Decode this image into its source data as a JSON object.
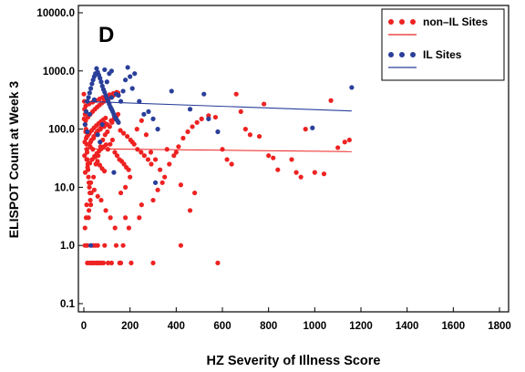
{
  "chart_data": {
    "type": "scatter",
    "panel_label": "D",
    "xlabel": "HZ Severity of Illness Score",
    "ylabel": "ELISPOT Count at Week 3",
    "xlim": [
      -5,
      1800
    ],
    "ylim": [
      0.08,
      10000
    ],
    "yscale": "log",
    "grid": false,
    "legend_position": "top-right",
    "x_ticks": [
      0,
      200,
      400,
      600,
      800,
      1000,
      1200,
      1400,
      1600,
      1800
    ],
    "y_ticks": [
      0.1,
      1,
      10,
      100,
      1000,
      10000
    ],
    "y_tick_labels": [
      "0.1",
      "1.0",
      "10.0",
      "100.0",
      "1000.0",
      "10000.0"
    ],
    "series": [
      {
        "name": "non–IL Sites",
        "color": "#ee2222",
        "fit_line": {
          "x": [
            0,
            1160
          ],
          "y": [
            46,
            41
          ]
        },
        "points": [
          [
            0,
            400
          ],
          [
            2,
            300
          ],
          [
            3,
            220
          ],
          [
            5,
            180
          ],
          [
            6,
            120
          ],
          [
            8,
            90
          ],
          [
            10,
            70
          ],
          [
            12,
            55
          ],
          [
            14,
            40
          ],
          [
            15,
            30
          ],
          [
            17,
            25
          ],
          [
            18,
            20
          ],
          [
            20,
            15
          ],
          [
            22,
            12
          ],
          [
            24,
            10
          ],
          [
            26,
            8
          ],
          [
            28,
            6
          ],
          [
            30,
            5
          ],
          [
            10,
            3
          ],
          [
            20,
            3
          ],
          [
            5,
            1
          ],
          [
            15,
            1
          ],
          [
            40,
            1
          ],
          [
            50,
            1
          ],
          [
            60,
            1
          ],
          [
            90,
            1
          ],
          [
            140,
            1
          ],
          [
            25,
            0.5
          ],
          [
            35,
            0.5
          ],
          [
            45,
            0.5
          ],
          [
            55,
            0.5
          ],
          [
            65,
            0.5
          ],
          [
            75,
            0.5
          ],
          [
            85,
            0.5
          ],
          [
            105,
            0.5
          ],
          [
            155,
            0.5
          ],
          [
            205,
            0.5
          ],
          [
            300,
            0.5
          ],
          [
            580,
            0.5
          ],
          [
            5,
            2
          ],
          [
            12,
            5
          ],
          [
            22,
            4
          ],
          [
            32,
            8
          ],
          [
            42,
            15
          ],
          [
            52,
            25
          ],
          [
            62,
            35
          ],
          [
            72,
            50
          ],
          [
            82,
            65
          ],
          [
            92,
            80
          ],
          [
            102,
            90
          ],
          [
            112,
            110
          ],
          [
            122,
            130
          ],
          [
            132,
            150
          ],
          [
            142,
            170
          ],
          [
            8,
            140
          ],
          [
            18,
            160
          ],
          [
            28,
            180
          ],
          [
            38,
            200
          ],
          [
            48,
            220
          ],
          [
            58,
            240
          ],
          [
            68,
            260
          ],
          [
            78,
            280
          ],
          [
            88,
            300
          ],
          [
            98,
            320
          ],
          [
            108,
            340
          ],
          [
            118,
            360
          ],
          [
            128,
            380
          ],
          [
            138,
            400
          ],
          [
            148,
            420
          ],
          [
            4,
            60
          ],
          [
            14,
            75
          ],
          [
            24,
            85
          ],
          [
            34,
            95
          ],
          [
            44,
            105
          ],
          [
            54,
            115
          ],
          [
            64,
            125
          ],
          [
            74,
            135
          ],
          [
            84,
            145
          ],
          [
            94,
            155
          ],
          [
            104,
            45
          ],
          [
            114,
            55
          ],
          [
            124,
            65
          ],
          [
            134,
            40
          ],
          [
            144,
            35
          ],
          [
            154,
            30
          ],
          [
            164,
            28
          ],
          [
            174,
            25
          ],
          [
            184,
            22
          ],
          [
            194,
            20
          ],
          [
            6,
            18
          ],
          [
            16,
            22
          ],
          [
            26,
            26
          ],
          [
            36,
            30
          ],
          [
            46,
            34
          ],
          [
            56,
            38
          ],
          [
            66,
            42
          ],
          [
            76,
            46
          ],
          [
            86,
            50
          ],
          [
            96,
            54
          ],
          [
            30,
            12
          ],
          [
            45,
            9
          ],
          [
            60,
            7
          ],
          [
            75,
            6
          ],
          [
            95,
            4
          ],
          [
            115,
            3
          ],
          [
            135,
            2
          ],
          [
            160,
            8
          ],
          [
            180,
            10
          ],
          [
            200,
            15
          ],
          [
            210,
            60
          ],
          [
            230,
            100
          ],
          [
            250,
            140
          ],
          [
            270,
            80
          ],
          [
            290,
            40
          ],
          [
            310,
            30
          ],
          [
            330,
            20
          ],
          [
            350,
            15
          ],
          [
            370,
            25
          ],
          [
            390,
            35
          ],
          [
            410,
            50
          ],
          [
            430,
            70
          ],
          [
            450,
            90
          ],
          [
            470,
            110
          ],
          [
            490,
            130
          ],
          [
            510,
            150
          ],
          [
            540,
            170
          ],
          [
            570,
            160
          ],
          [
            600,
            45
          ],
          [
            620,
            30
          ],
          [
            640,
            25
          ],
          [
            660,
            400
          ],
          [
            680,
            200
          ],
          [
            700,
            100
          ],
          [
            720,
            80
          ],
          [
            760,
            75
          ],
          [
            780,
            270
          ],
          [
            800,
            35
          ],
          [
            820,
            32
          ],
          [
            840,
            20
          ],
          [
            900,
            30
          ],
          [
            920,
            18
          ],
          [
            940,
            15
          ],
          [
            960,
            100
          ],
          [
            1000,
            18
          ],
          [
            1040,
            17
          ],
          [
            1070,
            310
          ],
          [
            1100,
            48
          ],
          [
            1130,
            60
          ],
          [
            1150,
            65
          ],
          [
            420,
            1
          ],
          [
            460,
            4
          ],
          [
            480,
            8
          ],
          [
            420,
            11
          ],
          [
            400,
            40
          ],
          [
            360,
            45
          ],
          [
            340,
            12
          ],
          [
            320,
            9
          ],
          [
            300,
            6
          ],
          [
            250,
            5
          ],
          [
            240,
            3
          ],
          [
            195,
            2
          ],
          [
            180,
            3
          ],
          [
            170,
            1
          ],
          [
            160,
            0.5
          ],
          [
            120,
            0.5
          ],
          [
            65,
            0.5
          ],
          [
            15,
            0.5
          ],
          [
            35,
            0.5
          ],
          [
            55,
            0.5
          ],
          [
            12,
            30
          ],
          [
            28,
            50
          ],
          [
            42,
            70
          ],
          [
            58,
            90
          ],
          [
            72,
            100
          ],
          [
            88,
            110
          ],
          [
            102,
            120
          ],
          [
            118,
            140
          ],
          [
            132,
            160
          ],
          [
            148,
            180
          ],
          [
            8,
            250
          ],
          [
            22,
            270
          ],
          [
            38,
            290
          ],
          [
            52,
            310
          ],
          [
            68,
            330
          ],
          [
            82,
            350
          ],
          [
            98,
            370
          ],
          [
            112,
            390
          ],
          [
            128,
            410
          ],
          [
            142,
            430
          ],
          [
            158,
            95
          ],
          [
            172,
            85
          ],
          [
            188,
            75
          ],
          [
            202,
            65
          ],
          [
            218,
            55
          ],
          [
            232,
            45
          ],
          [
            248,
            40
          ],
          [
            262,
            35
          ],
          [
            278,
            30
          ],
          [
            292,
            25
          ],
          [
            1,
            150
          ],
          [
            9,
            100
          ],
          [
            19,
            80
          ],
          [
            29,
            60
          ],
          [
            39,
            45
          ],
          [
            49,
            33
          ],
          [
            59,
            28
          ],
          [
            69,
            24
          ],
          [
            79,
            21
          ],
          [
            89,
            19
          ],
          [
            3,
            35
          ],
          [
            13,
            45
          ],
          [
            23,
            55
          ],
          [
            33,
            65
          ],
          [
            43,
            75
          ],
          [
            53,
            85
          ],
          [
            63,
            95
          ],
          [
            73,
            105
          ],
          [
            83,
            115
          ],
          [
            93,
            125
          ]
        ]
      },
      {
        "name": "IL Sites",
        "color": "#2a3f9a",
        "fit_line": {
          "x": [
            0,
            1160
          ],
          "y": [
            300,
            205
          ]
        },
        "points": [
          [
            5,
            120
          ],
          [
            10,
            200
          ],
          [
            15,
            300
          ],
          [
            20,
            350
          ],
          [
            25,
            420
          ],
          [
            30,
            500
          ],
          [
            35,
            600
          ],
          [
            40,
            700
          ],
          [
            45,
            800
          ],
          [
            50,
            900
          ],
          [
            55,
            1100
          ],
          [
            60,
            950
          ],
          [
            65,
            850
          ],
          [
            70,
            750
          ],
          [
            75,
            650
          ],
          [
            80,
            550
          ],
          [
            85,
            480
          ],
          [
            90,
            430
          ],
          [
            95,
            380
          ],
          [
            100,
            340
          ],
          [
            105,
            300
          ],
          [
            110,
            270
          ],
          [
            115,
            240
          ],
          [
            120,
            220
          ],
          [
            125,
            200
          ],
          [
            130,
            180
          ],
          [
            135,
            160
          ],
          [
            140,
            150
          ],
          [
            145,
            140
          ],
          [
            150,
            130
          ],
          [
            160,
            300
          ],
          [
            170,
            450
          ],
          [
            180,
            700
          ],
          [
            190,
            1150
          ],
          [
            200,
            800
          ],
          [
            210,
            500
          ],
          [
            220,
            900
          ],
          [
            240,
            300
          ],
          [
            260,
            180
          ],
          [
            280,
            200
          ],
          [
            300,
            150
          ],
          [
            320,
            100
          ],
          [
            380,
            450
          ],
          [
            460,
            220
          ],
          [
            520,
            400
          ],
          [
            540,
            150
          ],
          [
            580,
            90
          ],
          [
            990,
            105
          ],
          [
            1160,
            520
          ],
          [
            30,
            1
          ],
          [
            130,
            18
          ],
          [
            310,
            12
          ],
          [
            60,
            80
          ],
          [
            70,
            60
          ],
          [
            80,
            120
          ],
          [
            90,
            1050
          ],
          [
            110,
            900
          ],
          [
            120,
            350
          ],
          [
            140,
            400
          ],
          [
            150,
            380
          ],
          [
            100,
            650
          ],
          [
            120,
            1000
          ],
          [
            45,
            320
          ],
          [
            25,
            180
          ],
          [
            15,
            90
          ]
        ]
      }
    ]
  }
}
